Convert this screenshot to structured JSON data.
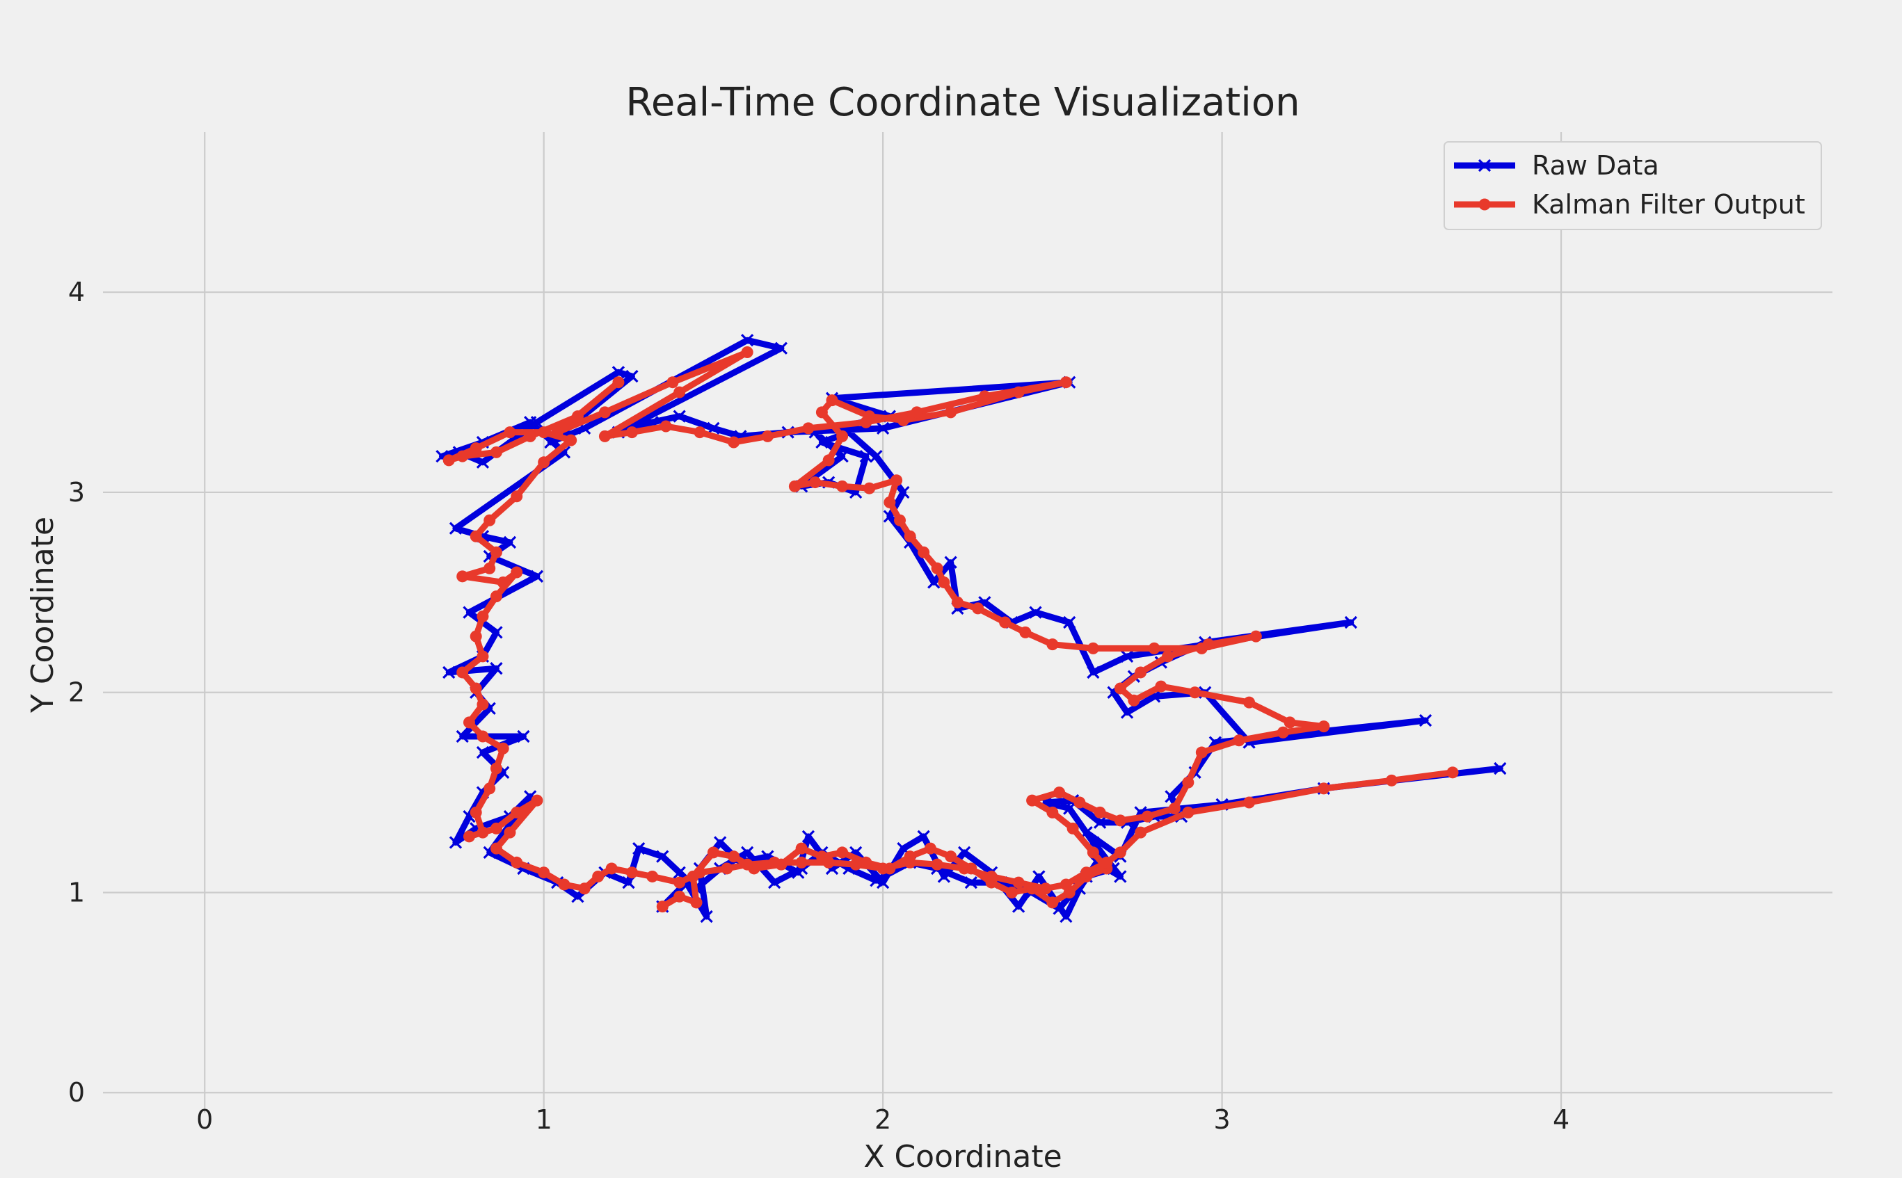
{
  "chart_data": {
    "type": "line",
    "title": "Real-Time Coordinate Visualization",
    "xlabel": "X Coordinate",
    "ylabel": "Y Coordinate",
    "xlim": [
      -0.3,
      4.8
    ],
    "ylim": [
      -0.1,
      4.8
    ],
    "xticks": [
      0,
      1,
      2,
      3,
      4
    ],
    "yticks": [
      0,
      1,
      2,
      3,
      4
    ],
    "grid": true,
    "legend_position": "top-right",
    "series": [
      {
        "name": "Raw Data",
        "color": "#0000dd",
        "marker": "x",
        "points": [
          [
            1.35,
            0.93
          ],
          [
            1.42,
            1.05
          ],
          [
            1.48,
            0.88
          ],
          [
            1.46,
            1.12
          ],
          [
            1.52,
            1.25
          ],
          [
            1.58,
            1.15
          ],
          [
            1.66,
            1.18
          ],
          [
            1.75,
            1.1
          ],
          [
            1.78,
            1.28
          ],
          [
            1.85,
            1.12
          ],
          [
            1.92,
            1.2
          ],
          [
            2.0,
            1.05
          ],
          [
            2.06,
            1.22
          ],
          [
            2.12,
            1.28
          ],
          [
            2.18,
            1.08
          ],
          [
            2.24,
            1.2
          ],
          [
            2.32,
            1.1
          ],
          [
            2.4,
            0.93
          ],
          [
            2.46,
            1.08
          ],
          [
            2.54,
            0.88
          ],
          [
            2.58,
            1.02
          ],
          [
            2.63,
            1.15
          ],
          [
            2.7,
            1.08
          ],
          [
            2.62,
            1.25
          ],
          [
            2.55,
            1.42
          ],
          [
            2.48,
            1.45
          ],
          [
            2.56,
            1.46
          ],
          [
            2.64,
            1.35
          ],
          [
            2.72,
            1.35
          ],
          [
            2.8,
            1.38
          ],
          [
            2.88,
            1.38
          ],
          [
            2.85,
            1.48
          ],
          [
            2.92,
            1.6
          ],
          [
            2.98,
            1.75
          ],
          [
            3.6,
            1.86
          ],
          [
            3.08,
            1.75
          ],
          [
            2.95,
            2.0
          ],
          [
            2.8,
            1.98
          ],
          [
            2.72,
            1.9
          ],
          [
            2.68,
            2.0
          ],
          [
            2.74,
            2.08
          ],
          [
            2.82,
            2.15
          ],
          [
            2.95,
            2.25
          ],
          [
            3.38,
            2.35
          ],
          [
            2.72,
            2.18
          ],
          [
            2.62,
            2.1
          ],
          [
            2.55,
            2.35
          ],
          [
            2.45,
            2.4
          ],
          [
            2.38,
            2.35
          ],
          [
            2.3,
            2.45
          ],
          [
            2.22,
            2.42
          ],
          [
            2.2,
            2.65
          ],
          [
            2.15,
            2.55
          ],
          [
            2.08,
            2.75
          ],
          [
            2.02,
            2.88
          ],
          [
            2.06,
            3.0
          ],
          [
            1.98,
            3.18
          ],
          [
            1.9,
            3.3
          ],
          [
            1.82,
            3.25
          ],
          [
            1.95,
            3.18
          ],
          [
            1.92,
            3.0
          ],
          [
            1.84,
            3.05
          ],
          [
            1.76,
            3.03
          ],
          [
            1.88,
            3.18
          ],
          [
            1.8,
            3.3
          ],
          [
            2.02,
            3.38
          ],
          [
            1.85,
            3.47
          ],
          [
            2.55,
            3.55
          ],
          [
            2.0,
            3.32
          ],
          [
            1.72,
            3.3
          ],
          [
            1.58,
            3.28
          ],
          [
            1.5,
            3.32
          ],
          [
            1.4,
            3.38
          ],
          [
            1.32,
            3.35
          ],
          [
            1.22,
            3.3
          ],
          [
            1.7,
            3.72
          ],
          [
            1.6,
            3.76
          ],
          [
            1.12,
            3.32
          ],
          [
            1.02,
            3.25
          ],
          [
            1.26,
            3.58
          ],
          [
            1.22,
            3.6
          ],
          [
            0.98,
            3.35
          ],
          [
            0.82,
            3.15
          ],
          [
            0.75,
            3.2
          ],
          [
            0.7,
            3.18
          ],
          [
            0.82,
            3.25
          ],
          [
            0.96,
            3.35
          ],
          [
            1.06,
            3.2
          ],
          [
            0.74,
            2.82
          ],
          [
            0.82,
            2.78
          ],
          [
            0.9,
            2.75
          ],
          [
            0.84,
            2.68
          ],
          [
            0.98,
            2.58
          ],
          [
            0.78,
            2.4
          ],
          [
            0.86,
            2.3
          ],
          [
            0.82,
            2.18
          ],
          [
            0.72,
            2.1
          ],
          [
            0.86,
            2.12
          ],
          [
            0.8,
            2.0
          ],
          [
            0.84,
            1.92
          ],
          [
            0.76,
            1.78
          ],
          [
            0.94,
            1.78
          ],
          [
            0.82,
            1.7
          ],
          [
            0.88,
            1.6
          ],
          [
            0.82,
            1.5
          ],
          [
            0.78,
            1.38
          ],
          [
            0.74,
            1.25
          ],
          [
            0.8,
            1.32
          ],
          [
            0.9,
            1.38
          ],
          [
            0.96,
            1.48
          ],
          [
            0.84,
            1.2
          ],
          [
            0.94,
            1.12
          ],
          [
            1.04,
            1.05
          ],
          [
            1.1,
            0.98
          ],
          [
            1.18,
            1.1
          ],
          [
            1.25,
            1.05
          ],
          [
            1.28,
            1.22
          ],
          [
            1.35,
            1.18
          ],
          [
            1.4,
            1.1
          ],
          [
            1.45,
            1.02
          ],
          [
            1.52,
            1.12
          ],
          [
            1.6,
            1.2
          ],
          [
            1.68,
            1.05
          ],
          [
            1.76,
            1.12
          ],
          [
            1.82,
            1.2
          ],
          [
            1.9,
            1.12
          ],
          [
            1.98,
            1.06
          ],
          [
            2.08,
            1.15
          ],
          [
            2.16,
            1.12
          ],
          [
            2.26,
            1.05
          ],
          [
            2.35,
            1.05
          ],
          [
            2.44,
            1.0
          ],
          [
            2.52,
            0.92
          ],
          [
            2.6,
            1.08
          ],
          [
            2.68,
            1.12
          ],
          [
            2.6,
            1.3
          ],
          [
            2.7,
            1.18
          ],
          [
            2.76,
            1.4
          ],
          [
            3.0,
            1.44
          ],
          [
            3.3,
            1.52
          ],
          [
            3.82,
            1.62
          ]
        ]
      },
      {
        "name": "Kalman Filter Output",
        "color": "#e8392b",
        "marker": "o",
        "points": [
          [
            1.35,
            0.93
          ],
          [
            1.4,
            0.98
          ],
          [
            1.45,
            0.95
          ],
          [
            1.44,
            1.08
          ],
          [
            1.5,
            1.2
          ],
          [
            1.56,
            1.18
          ],
          [
            1.62,
            1.12
          ],
          [
            1.7,
            1.14
          ],
          [
            1.76,
            1.22
          ],
          [
            1.82,
            1.18
          ],
          [
            1.88,
            1.2
          ],
          [
            1.95,
            1.15
          ],
          [
            2.02,
            1.12
          ],
          [
            2.08,
            1.18
          ],
          [
            2.14,
            1.22
          ],
          [
            2.2,
            1.18
          ],
          [
            2.26,
            1.12
          ],
          [
            2.32,
            1.05
          ],
          [
            2.38,
            1.0
          ],
          [
            2.44,
            1.02
          ],
          [
            2.5,
            0.95
          ],
          [
            2.55,
            1.0
          ],
          [
            2.6,
            1.08
          ],
          [
            2.66,
            1.12
          ],
          [
            2.62,
            1.2
          ],
          [
            2.56,
            1.32
          ],
          [
            2.5,
            1.4
          ],
          [
            2.44,
            1.46
          ],
          [
            2.52,
            1.5
          ],
          [
            2.58,
            1.45
          ],
          [
            2.64,
            1.4
          ],
          [
            2.7,
            1.36
          ],
          [
            2.78,
            1.38
          ],
          [
            2.86,
            1.42
          ],
          [
            2.9,
            1.55
          ],
          [
            2.94,
            1.7
          ],
          [
            3.05,
            1.76
          ],
          [
            3.18,
            1.8
          ],
          [
            3.3,
            1.83
          ],
          [
            3.2,
            1.85
          ],
          [
            3.08,
            1.95
          ],
          [
            2.92,
            2.0
          ],
          [
            2.82,
            2.03
          ],
          [
            2.74,
            1.96
          ],
          [
            2.7,
            2.02
          ],
          [
            2.76,
            2.1
          ],
          [
            2.84,
            2.18
          ],
          [
            2.96,
            2.24
          ],
          [
            3.1,
            2.28
          ],
          [
            2.94,
            2.22
          ],
          [
            2.8,
            2.22
          ],
          [
            2.62,
            2.22
          ],
          [
            2.5,
            2.24
          ],
          [
            2.42,
            2.3
          ],
          [
            2.36,
            2.35
          ],
          [
            2.28,
            2.42
          ],
          [
            2.22,
            2.45
          ],
          [
            2.18,
            2.55
          ],
          [
            2.16,
            2.62
          ],
          [
            2.12,
            2.7
          ],
          [
            2.08,
            2.78
          ],
          [
            2.05,
            2.86
          ],
          [
            2.02,
            2.95
          ],
          [
            2.04,
            3.06
          ],
          [
            1.96,
            3.02
          ],
          [
            1.88,
            3.03
          ],
          [
            1.8,
            3.05
          ],
          [
            1.74,
            3.03
          ],
          [
            1.84,
            3.16
          ],
          [
            1.88,
            3.28
          ],
          [
            1.82,
            3.4
          ],
          [
            1.85,
            3.46
          ],
          [
            1.96,
            3.38
          ],
          [
            2.06,
            3.36
          ],
          [
            2.2,
            3.4
          ],
          [
            2.4,
            3.5
          ],
          [
            2.54,
            3.55
          ],
          [
            2.3,
            3.48
          ],
          [
            2.1,
            3.4
          ],
          [
            1.95,
            3.35
          ],
          [
            1.78,
            3.32
          ],
          [
            1.66,
            3.28
          ],
          [
            1.56,
            3.25
          ],
          [
            1.46,
            3.3
          ],
          [
            1.36,
            3.33
          ],
          [
            1.26,
            3.3
          ],
          [
            1.18,
            3.28
          ],
          [
            1.4,
            3.5
          ],
          [
            1.6,
            3.7
          ],
          [
            1.38,
            3.55
          ],
          [
            1.18,
            3.4
          ],
          [
            1.04,
            3.3
          ],
          [
            1.22,
            3.55
          ],
          [
            1.1,
            3.38
          ],
          [
            0.96,
            3.28
          ],
          [
            0.86,
            3.2
          ],
          [
            0.76,
            3.18
          ],
          [
            0.72,
            3.16
          ],
          [
            0.8,
            3.22
          ],
          [
            0.9,
            3.3
          ],
          [
            1.0,
            3.3
          ],
          [
            1.08,
            3.26
          ],
          [
            1.0,
            3.15
          ],
          [
            0.92,
            2.98
          ],
          [
            0.84,
            2.86
          ],
          [
            0.8,
            2.78
          ],
          [
            0.86,
            2.7
          ],
          [
            0.84,
            2.62
          ],
          [
            0.76,
            2.58
          ],
          [
            0.88,
            2.55
          ],
          [
            0.92,
            2.6
          ],
          [
            0.86,
            2.48
          ],
          [
            0.82,
            2.38
          ],
          [
            0.8,
            2.28
          ],
          [
            0.82,
            2.18
          ],
          [
            0.76,
            2.1
          ],
          [
            0.8,
            2.02
          ],
          [
            0.82,
            1.94
          ],
          [
            0.78,
            1.85
          ],
          [
            0.82,
            1.78
          ],
          [
            0.88,
            1.72
          ],
          [
            0.86,
            1.62
          ],
          [
            0.84,
            1.52
          ],
          [
            0.8,
            1.4
          ],
          [
            0.82,
            1.3
          ],
          [
            0.78,
            1.28
          ],
          [
            0.86,
            1.32
          ],
          [
            0.92,
            1.4
          ],
          [
            0.98,
            1.46
          ],
          [
            0.9,
            1.3
          ],
          [
            0.86,
            1.22
          ],
          [
            0.92,
            1.15
          ],
          [
            1.0,
            1.1
          ],
          [
            1.06,
            1.04
          ],
          [
            1.12,
            1.02
          ],
          [
            1.16,
            1.08
          ],
          [
            1.2,
            1.12
          ],
          [
            1.26,
            1.1
          ],
          [
            1.32,
            1.08
          ],
          [
            1.4,
            1.05
          ],
          [
            1.46,
            1.1
          ],
          [
            1.54,
            1.12
          ],
          [
            1.6,
            1.14
          ],
          [
            1.68,
            1.15
          ],
          [
            1.76,
            1.15
          ],
          [
            1.84,
            1.15
          ],
          [
            1.92,
            1.14
          ],
          [
            2.0,
            1.12
          ],
          [
            2.08,
            1.15
          ],
          [
            2.16,
            1.14
          ],
          [
            2.24,
            1.12
          ],
          [
            2.32,
            1.08
          ],
          [
            2.4,
            1.05
          ],
          [
            2.48,
            1.02
          ],
          [
            2.54,
            1.04
          ],
          [
            2.6,
            1.1
          ],
          [
            2.66,
            1.15
          ],
          [
            2.7,
            1.2
          ],
          [
            2.76,
            1.3
          ],
          [
            2.9,
            1.4
          ],
          [
            3.08,
            1.45
          ],
          [
            3.3,
            1.52
          ],
          [
            3.5,
            1.56
          ],
          [
            3.68,
            1.6
          ]
        ]
      }
    ]
  }
}
